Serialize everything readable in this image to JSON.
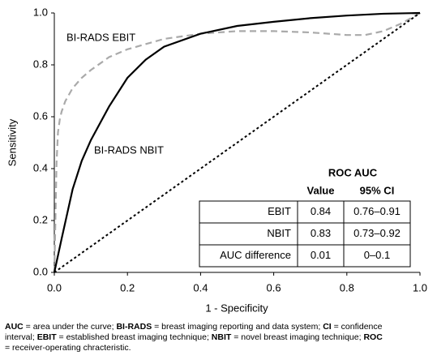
{
  "chart_data": {
    "type": "line",
    "xlabel": "1 - Specificity",
    "ylabel": "Sensitivity",
    "xlim": [
      0,
      1
    ],
    "ylim": [
      0,
      1
    ],
    "xticks": [
      {
        "value": 0,
        "label": "0.0"
      },
      0.2,
      0.4,
      0.6,
      0.8,
      {
        "value": 1,
        "label": "1.0"
      }
    ],
    "yticks": [
      {
        "value": 0,
        "label": "0.0"
      },
      0.2,
      0.4,
      0.6,
      0.8,
      {
        "value": 1,
        "label": "1.0"
      }
    ],
    "series": [
      {
        "name": "BI-RADS EBIT",
        "color": "#aaaaaa",
        "style": "dashed",
        "x": [
          0,
          0.003,
          0.006,
          0.01,
          0.015,
          0.02,
          0.03,
          0.05,
          0.075,
          0.1,
          0.15,
          0.2,
          0.3,
          0.4,
          0.5,
          0.6,
          0.7,
          0.8,
          0.85,
          0.9,
          0.95,
          1
        ],
        "values": [
          0,
          0.2,
          0.42,
          0.54,
          0.59,
          0.62,
          0.66,
          0.71,
          0.75,
          0.78,
          0.83,
          0.86,
          0.9,
          0.92,
          0.93,
          0.93,
          0.925,
          0.915,
          0.915,
          0.93,
          0.96,
          1
        ]
      },
      {
        "name": "BI-RADS NBIT",
        "color": "#000000",
        "style": "solid",
        "x": [
          0,
          0.02,
          0.05,
          0.075,
          0.1,
          0.15,
          0.2,
          0.25,
          0.3,
          0.4,
          0.5,
          0.6,
          0.7,
          0.8,
          0.9,
          1
        ],
        "values": [
          0,
          0.13,
          0.32,
          0.43,
          0.51,
          0.64,
          0.75,
          0.82,
          0.87,
          0.92,
          0.95,
          0.966,
          0.98,
          0.99,
          0.997,
          1
        ]
      },
      {
        "color": "#000000",
        "style": "dotted",
        "x": [
          0,
          1
        ],
        "values": [
          0,
          1
        ]
      }
    ],
    "table": {
      "title": "ROC AUC",
      "columns": [
        "Value",
        "95% CI"
      ],
      "rows": [
        [
          "EBIT",
          "0.84",
          "0.76–0.91"
        ],
        [
          "NBIT",
          "0.83",
          "0.73–0.92"
        ],
        [
          "AUC difference",
          "0.01",
          "0–0.1"
        ]
      ]
    },
    "footnote": [
      {
        "term": "AUC",
        "text": " = area under the curve; "
      },
      {
        "term": "BI-RADS",
        "text": " = breast imaging reporting and data system; "
      },
      {
        "term": "CI",
        "text": " = confidence interval; "
      },
      {
        "term": "EBIT",
        "text": " = established breast imaging technique; "
      },
      {
        "term": "NBIT",
        "text": " = novel breast imaging technique; "
      },
      {
        "term": "ROC",
        "text": " = receiver-operating chracteristic."
      }
    ]
  }
}
